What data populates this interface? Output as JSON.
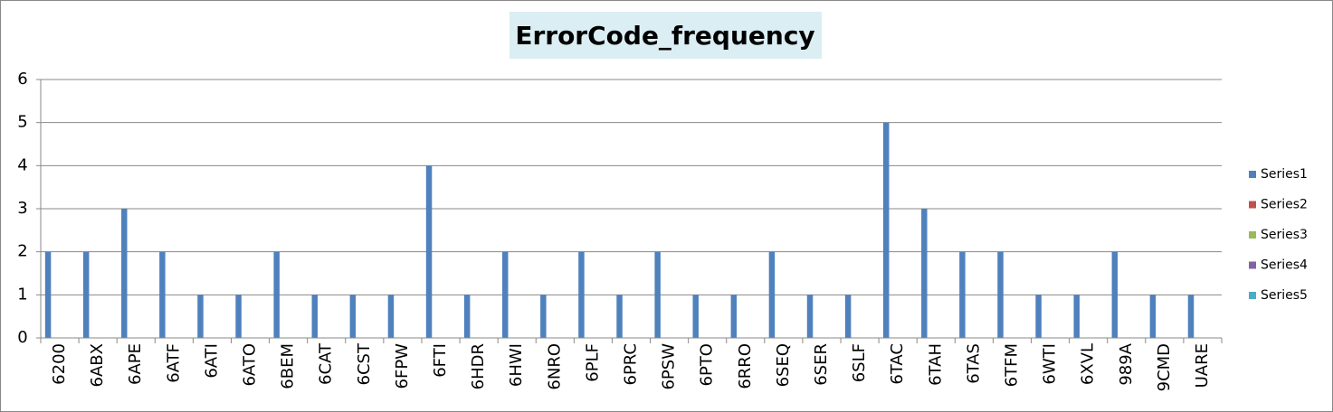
{
  "chart_data": {
    "type": "bar",
    "title": "ErrorCode_frequency",
    "categories": [
      "6200",
      "6ABX",
      "6APE",
      "6ATF",
      "6ATI",
      "6ATO",
      "6BEM",
      "6CAT",
      "6CST",
      "6FPW",
      "6FTI",
      "6HDR",
      "6HWI",
      "6NRO",
      "6PLF",
      "6PRC",
      "6PSW",
      "6PTO",
      "6RRO",
      "6SEQ",
      "6SER",
      "6SLF",
      "6TAC",
      "6TAH",
      "6TAS",
      "6TFM",
      "6WTI",
      "6XVL",
      "989A",
      "9CMD",
      "UARE"
    ],
    "series": [
      {
        "name": "Series1",
        "color": "#4f81bd",
        "values": [
          2,
          2,
          3,
          2,
          1,
          1,
          2,
          1,
          1,
          1,
          4,
          1,
          2,
          1,
          2,
          1,
          2,
          1,
          1,
          2,
          1,
          1,
          5,
          3,
          2,
          2,
          1,
          1,
          2,
          1,
          1
        ]
      },
      {
        "name": "Series2",
        "color": "#c0504d",
        "values": [
          null,
          null,
          null,
          null,
          null,
          null,
          null,
          null,
          null,
          null,
          null,
          null,
          null,
          null,
          null,
          null,
          null,
          null,
          null,
          null,
          null,
          null,
          null,
          null,
          null,
          null,
          null,
          null,
          null,
          null,
          null
        ]
      },
      {
        "name": "Series3",
        "color": "#9bbb59",
        "values": [
          null,
          null,
          null,
          null,
          null,
          null,
          null,
          null,
          null,
          null,
          null,
          null,
          null,
          null,
          null,
          null,
          null,
          null,
          null,
          null,
          null,
          null,
          null,
          null,
          null,
          null,
          null,
          null,
          null,
          null,
          null
        ]
      },
      {
        "name": "Series4",
        "color": "#8064a2",
        "values": [
          null,
          null,
          null,
          null,
          null,
          null,
          null,
          null,
          null,
          null,
          null,
          null,
          null,
          null,
          null,
          null,
          null,
          null,
          null,
          null,
          null,
          null,
          null,
          null,
          null,
          null,
          null,
          null,
          null,
          null,
          null
        ]
      },
      {
        "name": "Series5",
        "color": "#4bacc6",
        "values": [
          null,
          null,
          null,
          null,
          null,
          null,
          null,
          null,
          null,
          null,
          null,
          null,
          null,
          null,
          null,
          null,
          null,
          null,
          null,
          null,
          null,
          null,
          null,
          null,
          null,
          null,
          null,
          null,
          null,
          null,
          null
        ]
      }
    ],
    "ylim": [
      0,
      6
    ],
    "yticks": [
      0,
      1,
      2,
      3,
      4,
      5,
      6
    ],
    "grid": true,
    "legend": "right"
  }
}
